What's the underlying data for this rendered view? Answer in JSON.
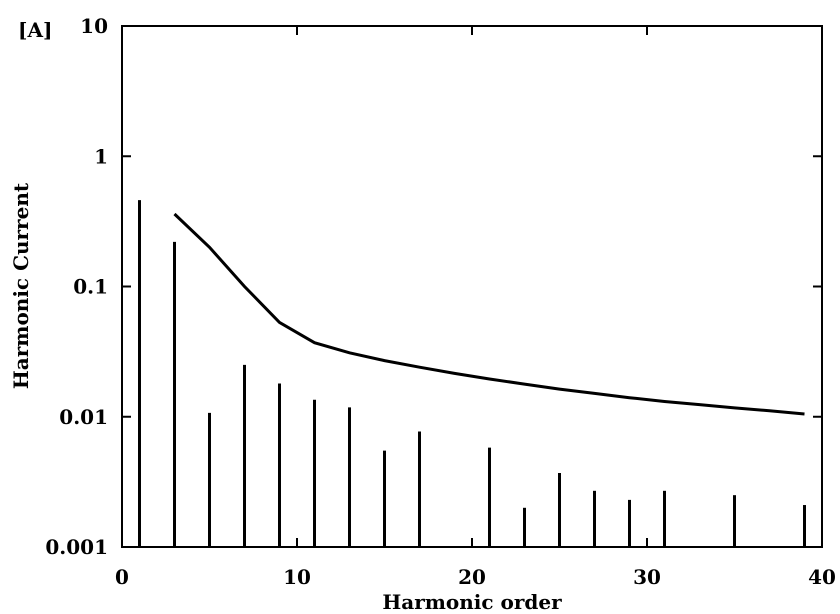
{
  "chart_data": {
    "type": "bar",
    "title": "",
    "xlabel": "Harmonic order",
    "ylabel": "Harmonic Current",
    "yunit": "[A]",
    "xlim": [
      0,
      40
    ],
    "ylim": [
      0.001,
      10
    ],
    "yscale": "log",
    "xticks": [
      {
        "value": 0,
        "label": "0"
      },
      {
        "value": 10,
        "label": "10"
      },
      {
        "value": 20,
        "label": "20"
      },
      {
        "value": 30,
        "label": "30"
      },
      {
        "value": 40,
        "label": "40"
      }
    ],
    "yticks": [
      {
        "value": 0.001,
        "label": "0.001"
      },
      {
        "value": 0.01,
        "label": "0.01"
      },
      {
        "value": 0.1,
        "label": "0.1"
      },
      {
        "value": 1,
        "label": "1"
      },
      {
        "value": 10,
        "label": "10"
      }
    ],
    "bars": {
      "x": [
        1,
        3,
        5,
        7,
        9,
        11,
        13,
        15,
        17,
        21,
        23,
        25,
        27,
        29,
        31,
        35,
        39
      ],
      "values": [
        0.46,
        0.22,
        0.0107,
        0.025,
        0.018,
        0.0135,
        0.0118,
        0.0055,
        0.0077,
        0.0058,
        0.002,
        0.0037,
        0.0027,
        0.0023,
        0.0027,
        0.0025,
        0.0021
      ]
    },
    "line": {
      "x": [
        3,
        5,
        7,
        9,
        11,
        13,
        15,
        17,
        19,
        21,
        23,
        25,
        27,
        29,
        31,
        33,
        35,
        37,
        39
      ],
      "values": [
        0.36,
        0.2,
        0.1,
        0.053,
        0.037,
        0.031,
        0.027,
        0.024,
        0.0215,
        0.0195,
        0.0178,
        0.0163,
        0.0151,
        0.014,
        0.0131,
        0.0124,
        0.0117,
        0.0111,
        0.0105
      ]
    },
    "grid": false
  }
}
